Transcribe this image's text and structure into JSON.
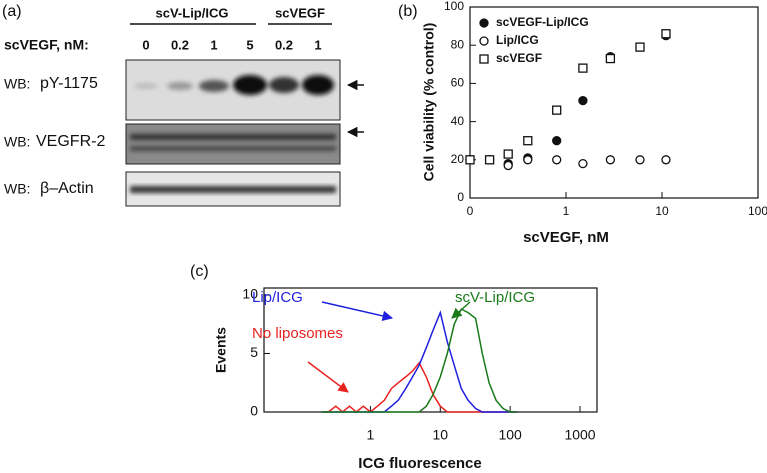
{
  "blot": {
    "panel_label": "(a)",
    "groups": [
      "scV-Lip/ICG",
      "scVEGF"
    ],
    "dose_label": "scVEGF, nM:",
    "lanes": [
      "0",
      "0.2",
      "1",
      "5",
      "0.2",
      "1"
    ],
    "rows": [
      {
        "prefix": "WB:",
        "label": "pY-1175"
      },
      {
        "prefix": "WB:",
        "label": "VEGFR-2"
      },
      {
        "prefix": "WB:",
        "label": "β–Actin"
      }
    ]
  },
  "chart_data": [
    {
      "type": "scatter",
      "panel_label": "(b)",
      "x_label": "scVEGF, nM",
      "y_label": "Cell viability (% control)",
      "log_x": true,
      "xlim": [
        0.1,
        100
      ],
      "xticks": [
        {
          "value": 0.1,
          "label": "0"
        },
        1,
        10,
        100
      ],
      "ylim": [
        0,
        100
      ],
      "yticks": [
        0,
        20,
        40,
        60,
        80,
        100
      ],
      "legend": "upper left",
      "x": [
        0.1,
        0.16,
        0.25,
        0.4,
        0.8,
        1.5,
        2.9,
        5.9,
        11
      ],
      "series": [
        {
          "name": "scVEGF-Lip/ICG",
          "color": "#111111",
          "marker": "filled-circle",
          "values": [
            20,
            20,
            18,
            21,
            30,
            51,
            74,
            null,
            85
          ]
        },
        {
          "name": "Lip/ICG",
          "color": "#111111",
          "marker": "open-circle",
          "values": [
            20,
            20,
            17,
            20,
            20,
            18,
            20,
            20,
            20
          ]
        },
        {
          "name": "scVEGF",
          "color": "#111111",
          "marker": "open-square",
          "values": [
            20,
            20,
            23,
            30,
            46,
            68,
            73,
            79,
            86
          ]
        }
      ]
    },
    {
      "type": "line",
      "panel_label": "(c)",
      "x_label": "ICG fluorescence",
      "y_label": "Events",
      "log_x": true,
      "xlim": [
        0.03,
        1750
      ],
      "xticks": [
        1,
        10,
        100,
        1000
      ],
      "ylim": [
        0,
        10.6
      ],
      "yticks": [
        0,
        5,
        10
      ],
      "x": [
        0.2,
        0.25,
        0.32,
        0.4,
        0.5,
        0.63,
        0.79,
        1,
        1.26,
        1.58,
        2,
        2.5,
        3.2,
        4,
        5,
        6.3,
        7.9,
        10,
        12.6,
        15.8,
        20,
        25,
        32,
        40,
        50,
        63,
        79,
        100,
        126
      ],
      "series": [
        {
          "name": "No liposomes",
          "color": "#e8231f",
          "values": [
            0,
            0,
            0.5,
            0,
            0.5,
            0,
            0.5,
            0,
            0.5,
            1,
            2,
            2.5,
            3,
            3.5,
            4.2,
            3,
            1.5,
            0.5,
            0,
            0,
            0,
            0,
            0,
            0,
            0,
            0,
            0,
            0,
            0
          ]
        },
        {
          "name": "Lip/ICG",
          "color": "#1f1fe0",
          "values": [
            0,
            0,
            0,
            0,
            0,
            0,
            0,
            0,
            0,
            0,
            0.5,
            1,
            2,
            3,
            4,
            5.5,
            7,
            8.5,
            6,
            4,
            2,
            1,
            0.3,
            0,
            0,
            0,
            0,
            0,
            0
          ]
        },
        {
          "name": "scV-Lip/ICG",
          "color": "#1a7a1a",
          "values": [
            0,
            0,
            0,
            0,
            0,
            0,
            0,
            0,
            0,
            0,
            0,
            0,
            0,
            0,
            0,
            0.5,
            1.5,
            3,
            5,
            7.5,
            8.8,
            8.5,
            8,
            5,
            2.5,
            1,
            0.3,
            0,
            0
          ]
        }
      ]
    }
  ]
}
